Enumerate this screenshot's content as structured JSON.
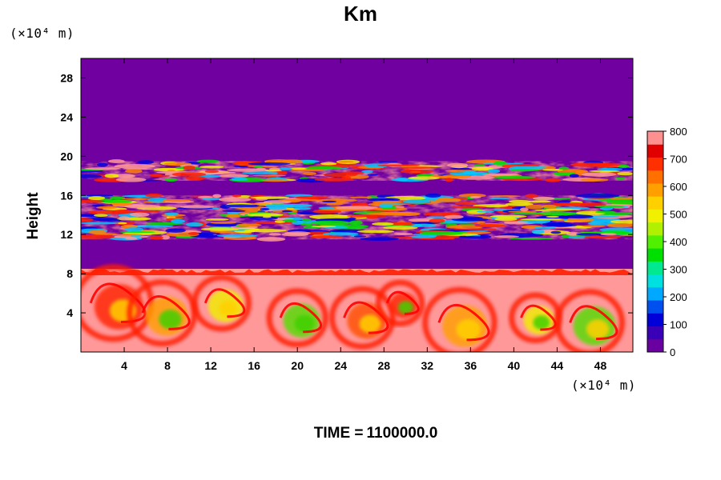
{
  "chart_data": {
    "type": "heatmap",
    "title": "Km",
    "ylabel": "Height",
    "x_unit": "(×10⁴ m)",
    "y_unit": "(×10⁴ m)",
    "xlim": [
      0,
      51
    ],
    "ylim": [
      0,
      30
    ],
    "x_ticks": [
      "4",
      "8",
      "12",
      "16",
      "20",
      "24",
      "28",
      "32",
      "36",
      "40",
      "44",
      "48"
    ],
    "y_ticks": [
      "4",
      "8",
      "12",
      "16",
      "20",
      "24",
      "28"
    ],
    "colorbar": {
      "min": 0,
      "max": 800,
      "ticks": [
        "0",
        "100",
        "200",
        "300",
        "400",
        "500",
        "600",
        "700",
        "800"
      ],
      "colors": [
        "#6a00a0",
        "#3a00b8",
        "#0000d8",
        "#0050f0",
        "#00a8ff",
        "#00e0e0",
        "#00e890",
        "#00e000",
        "#50f000",
        "#b0f000",
        "#f0f000",
        "#ffd000",
        "#ffa000",
        "#ff7000",
        "#ff3000",
        "#e00000",
        "#ff9090"
      ]
    },
    "background_value_color": "#7000a0",
    "regions": [
      {
        "name": "upper turbulent layer",
        "y_range": [
          17.5,
          19.5
        ],
        "level": "mixed 300-800"
      },
      {
        "name": "middle turbulent layer",
        "y_range": [
          11.5,
          16
        ],
        "level": "mixed 300-800"
      },
      {
        "name": "lower mixed layer",
        "y_range": [
          0,
          8.5
        ],
        "level": "mostly 800 with eddies 400-700"
      }
    ]
  },
  "footer": {
    "time_label": "TIME =",
    "time_value": "1100000.0"
  }
}
